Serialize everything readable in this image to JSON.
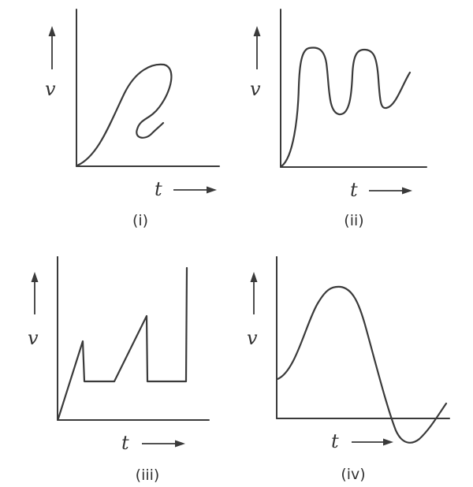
{
  "panels": [
    {
      "id": "i",
      "caption": "(i)",
      "y_axis_label": "v",
      "x_axis_label": "t"
    },
    {
      "id": "ii",
      "caption": "(ii)",
      "y_axis_label": "v",
      "x_axis_label": "t"
    },
    {
      "id": "iii",
      "caption": "(iii)",
      "y_axis_label": "v",
      "x_axis_label": "t"
    },
    {
      "id": "iv",
      "caption": "(iv)",
      "y_axis_label": "v",
      "x_axis_label": "t"
    }
  ]
}
